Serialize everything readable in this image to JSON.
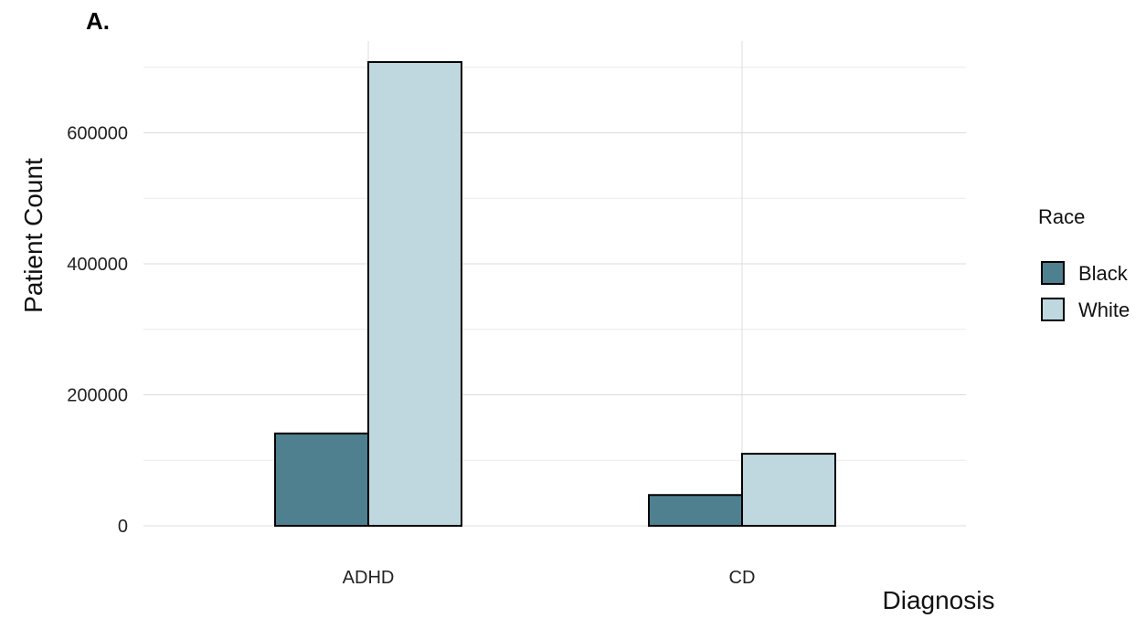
{
  "panel_label": "A.",
  "chart_data": {
    "type": "bar",
    "categories": [
      "ADHD",
      "CD"
    ],
    "series": [
      {
        "name": "Black",
        "values": [
          141000,
          47000
        ],
        "color": "#4e8090"
      },
      {
        "name": "White",
        "values": [
          708000,
          110000
        ],
        "color": "#bfd7de"
      }
    ],
    "xlabel": "Diagnosis",
    "ylabel": "Patient Count",
    "ylim": [
      0,
      740000
    ],
    "yticks": [
      0,
      200000,
      400000,
      600000
    ],
    "ytick_labels": [
      "0",
      "200000",
      "400000",
      "600000"
    ],
    "legend_title": "Race",
    "legend_position": "right",
    "grid": true
  }
}
